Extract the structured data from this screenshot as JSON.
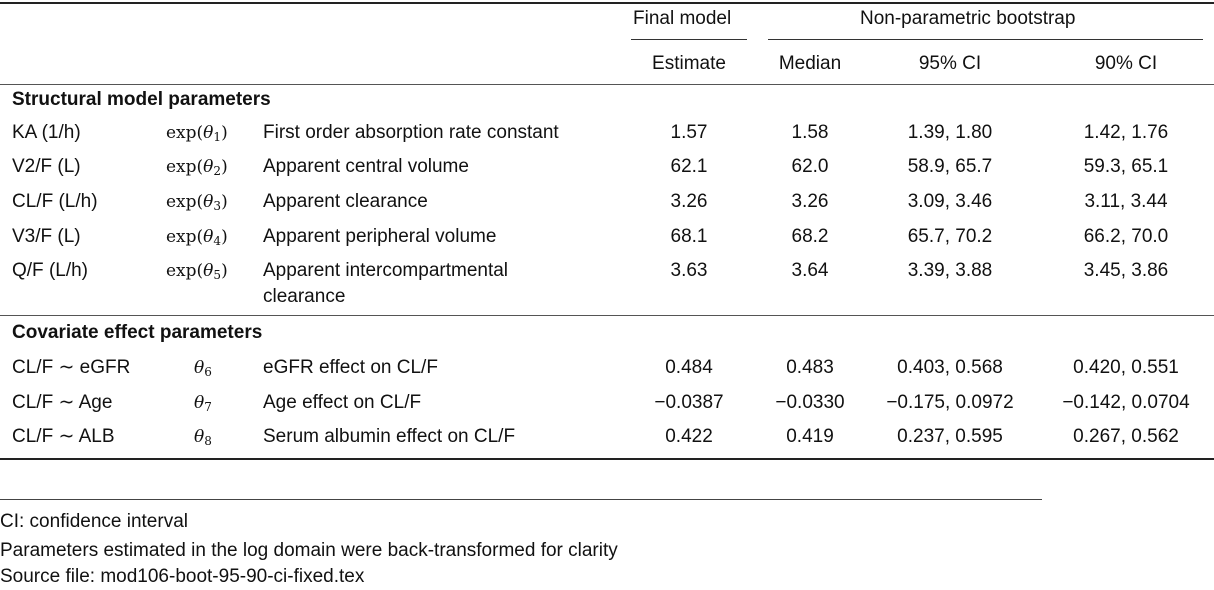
{
  "header": {
    "final_model": "Final model",
    "bootstrap": "Non-parametric bootstrap",
    "estimate": "Estimate",
    "median": "Median",
    "ci95": "95% CI",
    "ci90": "90% CI"
  },
  "sections": {
    "structural": "Structural model parameters",
    "covariate": "Covariate effect parameters"
  },
  "structural_rows": [
    {
      "param": "KA (1/h)",
      "theta_fn": "exp",
      "theta_idx": "1",
      "desc": "First order absorption rate constant",
      "desc2": "",
      "estimate": "1.57",
      "median": "1.58",
      "ci95": "1.39, 1.80",
      "ci90": "1.42, 1.76"
    },
    {
      "param": "V2/F (L)",
      "theta_fn": "exp",
      "theta_idx": "2",
      "desc": "Apparent central volume",
      "desc2": "",
      "estimate": "62.1",
      "median": "62.0",
      "ci95": "58.9, 65.7",
      "ci90": "59.3, 65.1"
    },
    {
      "param": "CL/F (L/h)",
      "theta_fn": "exp",
      "theta_idx": "3",
      "desc": "Apparent clearance",
      "desc2": "",
      "estimate": "3.26",
      "median": "3.26",
      "ci95": "3.09, 3.46",
      "ci90": "3.11, 3.44"
    },
    {
      "param": "V3/F (L)",
      "theta_fn": "exp",
      "theta_idx": "4",
      "desc": "Apparent peripheral volume",
      "desc2": "",
      "estimate": "68.1",
      "median": "68.2",
      "ci95": "65.7, 70.2",
      "ci90": "66.2, 70.0"
    },
    {
      "param": "Q/F (L/h)",
      "theta_fn": "exp",
      "theta_idx": "5",
      "desc": "Apparent intercompartmental",
      "desc2": "clearance",
      "estimate": "3.63",
      "median": "3.64",
      "ci95": "3.39, 3.88",
      "ci90": "3.45, 3.86"
    }
  ],
  "covariate_rows": [
    {
      "param": "CL/F ∼ eGFR",
      "theta_idx": "6",
      "desc": "eGFR effect on CL/F",
      "estimate": "0.484",
      "median": "0.483",
      "ci95": "0.403, 0.568",
      "ci90": "0.420, 0.551"
    },
    {
      "param": "CL/F ∼ Age",
      "theta_idx": "7",
      "desc": "Age effect on CL/F",
      "estimate": "−0.0387",
      "median": "−0.0330",
      "ci95": "−0.175, 0.0972",
      "ci90": "−0.142, 0.0704"
    },
    {
      "param": "CL/F ∼ ALB",
      "theta_idx": "8",
      "desc": "Serum albumin effect on CL/F",
      "estimate": "0.422",
      "median": "0.419",
      "ci95": "0.237, 0.595",
      "ci90": "0.267, 0.562"
    }
  ],
  "footnotes": {
    "ci": "CI: confidence interval",
    "backtransform": "Parameters estimated in the log domain were back-transformed for clarity",
    "source": "Source file: mod106-boot-95-90-ci-fixed.tex"
  }
}
